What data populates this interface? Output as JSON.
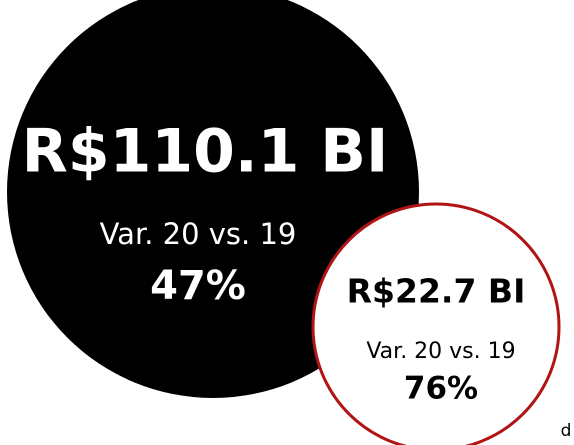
{
  "main": {
    "amount": "R$110.1 BI",
    "variation_label": "Var. 20 vs. 19",
    "variation": "47%"
  },
  "secondary": {
    "amount": "R$22.7 BI",
    "variation_label": "Var. 20 vs. 19",
    "variation": "76%"
  },
  "footnote": "d"
}
